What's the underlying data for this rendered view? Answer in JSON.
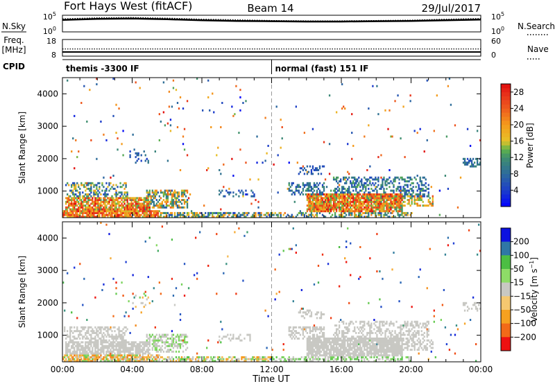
{
  "chart_data": [
    {
      "type": "line",
      "header": {
        "station": "Fort Hays West (fitACF)",
        "beam": "Beam 14",
        "date": "29/Jul/2017"
      },
      "panel": "noise",
      "left_label": "N.Sky",
      "right_label": "N.Search",
      "left_ticks": [
        "10^5",
        "10^0"
      ],
      "right_ticks": [
        "10^5",
        "10^0"
      ],
      "series": [
        {
          "name": "N.Sky",
          "style": "solid",
          "x": [
            0,
            2,
            4,
            6,
            8,
            10,
            12,
            14,
            16,
            18,
            20,
            22,
            24
          ],
          "y": [
            3.6,
            3.9,
            4.0,
            3.8,
            3.5,
            3.3,
            3.2,
            3.1,
            3.1,
            3.2,
            3.3,
            3.5,
            3.7
          ]
        },
        {
          "name": "N.Search",
          "style": "dotted",
          "x": [
            0,
            2,
            4,
            6,
            8,
            10,
            12,
            14,
            16,
            18,
            20,
            22,
            24
          ],
          "y": [
            3.9,
            4.2,
            4.3,
            4.1,
            3.8,
            3.6,
            3.4,
            3.3,
            3.3,
            3.4,
            3.5,
            3.8,
            4.0
          ]
        }
      ]
    },
    {
      "type": "line",
      "panel": "frequency",
      "left_label": "Freq.",
      "left_unit": "[MHz]",
      "right_label": "Nave",
      "left_ticks": [
        "18",
        "8"
      ],
      "right_ticks": [
        "60",
        "0"
      ],
      "series": [
        {
          "name": "Freq.",
          "style": "solid",
          "x": [
            0,
            24
          ],
          "y": [
            10.5,
            10.5
          ]
        },
        {
          "name": "Nave",
          "style": "dotted",
          "x": [
            0,
            24
          ],
          "y": [
            26,
            26
          ]
        }
      ]
    },
    {
      "type": "table",
      "panel": "cpid",
      "label": "CPID",
      "segments": [
        {
          "start": 0,
          "end": 12,
          "text": "themis -3300 IF"
        },
        {
          "start": 12,
          "end": 24,
          "text": "normal (fast) 151 IF"
        }
      ]
    },
    {
      "type": "heatmap",
      "panel": "power",
      "ylabel": "Slant Range [km]",
      "xlim": [
        0,
        24
      ],
      "ylim": [
        180,
        4500
      ],
      "yticks": [
        "1000",
        "2000",
        "3000",
        "4000"
      ],
      "colorbar": {
        "label": "Power [dB]",
        "ticks": [
          "4",
          "8",
          "12",
          "16",
          "20",
          "24",
          "28"
        ],
        "range": [
          0,
          30
        ]
      },
      "scatter_fraction": 0.025,
      "blobs": [
        {
          "t0": 0.0,
          "t1": 5.6,
          "r0": 180,
          "r1": 400,
          "density": 0.85,
          "vmin": 14,
          "vmax": 30
        },
        {
          "t0": 0.2,
          "t1": 5.0,
          "r0": 350,
          "r1": 820,
          "density": 0.8,
          "vmin": 12,
          "vmax": 30
        },
        {
          "t0": 0.1,
          "t1": 3.8,
          "r0": 800,
          "r1": 1250,
          "density": 0.42,
          "vmin": 4,
          "vmax": 20
        },
        {
          "t0": 4.8,
          "t1": 7.2,
          "r0": 480,
          "r1": 1050,
          "density": 0.55,
          "vmin": 6,
          "vmax": 24
        },
        {
          "t0": 5.6,
          "t1": 12.0,
          "r0": 180,
          "r1": 380,
          "density": 0.6,
          "vmin": 4,
          "vmax": 22
        },
        {
          "t0": 9.0,
          "t1": 11.0,
          "r0": 830,
          "r1": 1060,
          "density": 0.35,
          "vmin": 4,
          "vmax": 10
        },
        {
          "t0": 13.0,
          "t1": 15.0,
          "r0": 900,
          "r1": 1250,
          "density": 0.5,
          "vmin": 4,
          "vmax": 12
        },
        {
          "t0": 13.5,
          "t1": 15.0,
          "r0": 1500,
          "r1": 1800,
          "density": 0.28,
          "vmin": 4,
          "vmax": 8
        },
        {
          "t0": 14.0,
          "t1": 19.5,
          "r0": 330,
          "r1": 900,
          "density": 0.9,
          "vmin": 12,
          "vmax": 30
        },
        {
          "t0": 15.5,
          "t1": 21.0,
          "r0": 800,
          "r1": 1450,
          "density": 0.4,
          "vmin": 4,
          "vmax": 14
        },
        {
          "t0": 19.5,
          "t1": 21.3,
          "r0": 500,
          "r1": 850,
          "density": 0.5,
          "vmin": 12,
          "vmax": 24
        },
        {
          "t0": 12.0,
          "t1": 20.0,
          "r0": 180,
          "r1": 350,
          "density": 0.45,
          "vmin": 6,
          "vmax": 22
        },
        {
          "t0": 23.0,
          "t1": 24.0,
          "r0": 1750,
          "r1": 2050,
          "density": 0.4,
          "vmin": 4,
          "vmax": 12
        },
        {
          "t0": 3.8,
          "t1": 5.0,
          "r0": 1850,
          "r1": 2300,
          "density": 0.12,
          "vmin": 4,
          "vmax": 10
        }
      ]
    },
    {
      "type": "heatmap",
      "panel": "velocity",
      "ylabel": "Slant Range [km]",
      "xlabel": "Time UT",
      "xlim": [
        0,
        24
      ],
      "ylim": [
        180,
        4500
      ],
      "yticks": [
        "1000",
        "2000",
        "3000",
        "4000"
      ],
      "xticks": [
        "00:00",
        "04:00",
        "08:00",
        "12:00",
        "16:00",
        "20:00",
        "00:00"
      ],
      "colorbar": {
        "label": "Velocity [m s^-1]",
        "ticks": [
          "200",
          "100",
          "50",
          "15",
          "-15",
          "-50",
          "-100",
          "-200"
        ],
        "range": [
          -250,
          250
        ]
      },
      "scatter_fraction": 0.02,
      "blobs": [
        {
          "t0": 0.0,
          "t1": 5.6,
          "r0": 180,
          "r1": 420,
          "density": 0.75,
          "vmin": -90,
          "vmax": 40
        },
        {
          "t0": 0.2,
          "t1": 5.0,
          "r0": 420,
          "r1": 820,
          "density": 0.75,
          "vmin": -12,
          "vmax": 12
        },
        {
          "t0": 0.1,
          "t1": 3.8,
          "r0": 820,
          "r1": 1250,
          "density": 0.45,
          "vmin": -12,
          "vmax": 12
        },
        {
          "t0": 4.8,
          "t1": 7.2,
          "r0": 480,
          "r1": 1050,
          "density": 0.5,
          "vmin": -12,
          "vmax": 30
        },
        {
          "t0": 5.6,
          "t1": 12.0,
          "r0": 180,
          "r1": 380,
          "density": 0.55,
          "vmin": -60,
          "vmax": 45
        },
        {
          "t0": 9.0,
          "t1": 11.0,
          "r0": 830,
          "r1": 1060,
          "density": 0.3,
          "vmin": -12,
          "vmax": 12
        },
        {
          "t0": 13.0,
          "t1": 15.0,
          "r0": 900,
          "r1": 1250,
          "density": 0.5,
          "vmin": -12,
          "vmax": 12
        },
        {
          "t0": 13.5,
          "t1": 15.0,
          "r0": 1500,
          "r1": 1800,
          "density": 0.3,
          "vmin": -12,
          "vmax": 12
        },
        {
          "t0": 14.0,
          "t1": 19.5,
          "r0": 330,
          "r1": 900,
          "density": 0.85,
          "vmin": -12,
          "vmax": 12
        },
        {
          "t0": 15.5,
          "t1": 21.0,
          "r0": 800,
          "r1": 1450,
          "density": 0.4,
          "vmin": -12,
          "vmax": 12
        },
        {
          "t0": 17.0,
          "t1": 19.0,
          "r0": 700,
          "r1": 950,
          "density": 0.35,
          "vmin": -120,
          "vmax": 120
        },
        {
          "t0": 19.5,
          "t1": 21.3,
          "r0": 500,
          "r1": 850,
          "density": 0.45,
          "vmin": -12,
          "vmax": 12
        },
        {
          "t0": 12.0,
          "t1": 20.0,
          "r0": 180,
          "r1": 350,
          "density": 0.5,
          "vmin": -10,
          "vmax": 45
        },
        {
          "t0": 23.0,
          "t1": 24.0,
          "r0": 1750,
          "r1": 2050,
          "density": 0.4,
          "vmin": -12,
          "vmax": 12
        },
        {
          "t0": 3.8,
          "t1": 5.0,
          "r0": 1850,
          "r1": 2300,
          "density": 0.12,
          "vmin": -40,
          "vmax": 40
        }
      ]
    }
  ]
}
